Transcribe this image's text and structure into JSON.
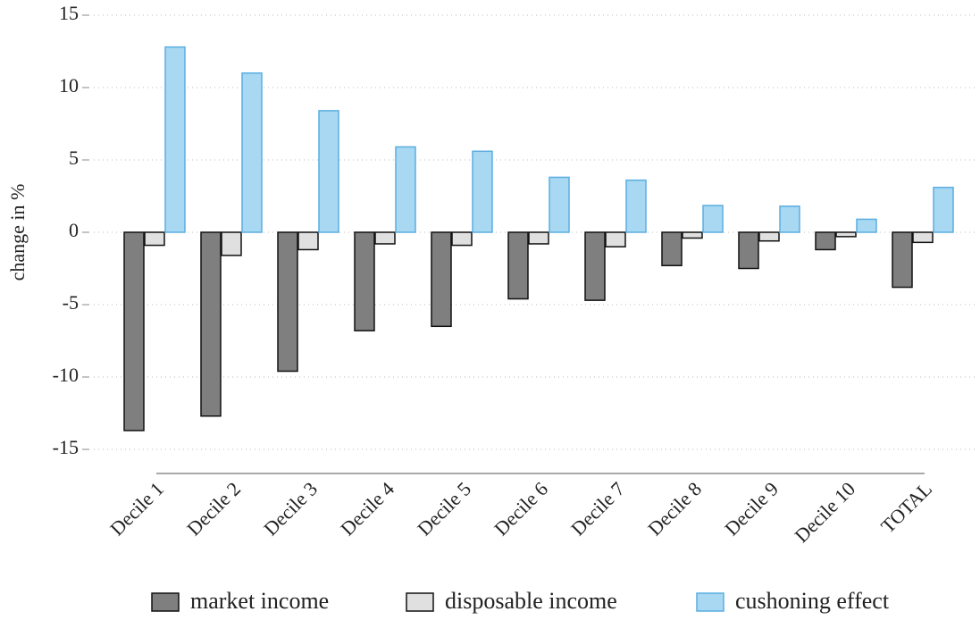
{
  "chart_data": {
    "type": "bar",
    "y_label": "change in %",
    "categories": [
      "Decile 1",
      "Decile 2",
      "Decile 3",
      "Decile 4",
      "Decile 5",
      "Decile 6",
      "Decile 7",
      "Decile 8",
      "Decile 9",
      "Decile 10",
      "TOTAL"
    ],
    "series": [
      {
        "name": "market income",
        "color": "#7f7f7f",
        "values": [
          -13.7,
          -12.7,
          -9.6,
          -6.8,
          -6.5,
          -4.6,
          -4.7,
          -2.3,
          -2.5,
          -1.2,
          -3.8
        ]
      },
      {
        "name": "disposable income",
        "color": "#e0e0e0",
        "values": [
          -0.9,
          -1.6,
          -1.2,
          -0.8,
          -0.9,
          -0.8,
          -1.0,
          -0.4,
          -0.6,
          -0.3,
          -0.7
        ]
      },
      {
        "name": "cushoning effect",
        "color": "#a8d8f2",
        "values": [
          12.8,
          11.0,
          8.4,
          5.9,
          5.6,
          3.8,
          3.6,
          1.85,
          1.8,
          0.9,
          3.1
        ]
      }
    ],
    "ylim": [
      -15,
      15
    ],
    "yticks": [
      -15,
      -10,
      -5,
      0,
      5,
      10,
      15
    ],
    "grid": true,
    "legend": "bottom"
  }
}
